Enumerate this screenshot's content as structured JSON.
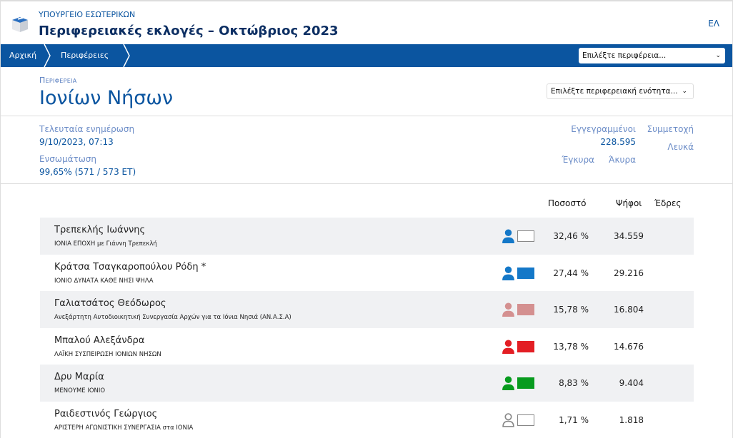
{
  "header": {
    "ministry": "ΥΠΟΥΡΓΕΙΟ ΕΣΩΤΕΡΙΚΩΝ",
    "title": "Περιφερειακές εκλογές – Οκτώβριος 2023",
    "language": "ΕΛ"
  },
  "nav": {
    "breadcrumbs": [
      "Αρχική",
      "Περιφέρειες"
    ],
    "region_select": "Επιλέξτε περιφέρεια..."
  },
  "region": {
    "label": "Περιφερεια",
    "name": "Ιονίων Νήσων",
    "unit_select": "Επιλέξτε περιφερειακή ενότητα..."
  },
  "stats": {
    "last_update_label": "Τελευταία ενημέρωση",
    "last_update": "9/10/2023, 07:13",
    "integration_label": "Ενσωμάτωση",
    "integration": "99,65% (571 / 573 ΕΤ)",
    "registered_label": "Εγγεγραμμένοι",
    "registered": "228.595",
    "turnout_label": "Συμμετοχή",
    "blank_label": "Λευκά",
    "valid_label": "Έγκυρα",
    "invalid_label": "Άκυρα"
  },
  "table": {
    "headers": {
      "percent": "Ποσοστό",
      "votes": "Ψήφοι",
      "seats": "Έδρες"
    },
    "rows": [
      {
        "name": "Τρεπεκλής Ιωάννης",
        "party": "ΙΟΝΙΑ ΕΠΟΧΗ με Γιάννη Τρεπεκλή",
        "percent": "32,46 %",
        "votes": "34.559",
        "icon_color": "#1478c8",
        "swatch_color": "#ffffff",
        "outline": false
      },
      {
        "name": "Κράτσα Τσαγκαροπούλου Ρόδη *",
        "party": "ΙΟΝΙΟ ΔΥΝΑΤΑ ΚΑΘΕ ΝΗΣΙ ΨΗΛΑ",
        "percent": "27,44 %",
        "votes": "29.216",
        "icon_color": "#1478c8",
        "swatch_color": "#1478c8",
        "outline": false
      },
      {
        "name": "Γαλιατσάτος Θεόδωρος",
        "party": "Ανεξάρτητη Αυτοδιοικητική Συνεργασία Αρχών για τα Ιόνια Νησιά (ΑΝ.Α.Σ.Α)",
        "percent": "15,78 %",
        "votes": "16.804",
        "icon_color": "#d49090",
        "swatch_color": "#d49090",
        "outline": false
      },
      {
        "name": "Μπαλού Αλεξάνδρα",
        "party": "ΛΑΪΚΗ ΣΥΣΠΕΙΡΩΣΗ ΙΟΝΙΩΝ ΝΗΣΩΝ",
        "percent": "13,78 %",
        "votes": "14.676",
        "icon_color": "#e31e24",
        "swatch_color": "#e31e24",
        "outline": false
      },
      {
        "name": "Δρυ Μαρία",
        "party": "ΜΕΝΟΥΜΕ ΙΟΝΙΟ",
        "percent": "8,83 %",
        "votes": "9.404",
        "icon_color": "#079b1e",
        "swatch_color": "#079b1e",
        "outline": false
      },
      {
        "name": "Ραιδεστινός Γεώργιος",
        "party": "ΑΡΙΣΤΕΡΗ ΑΓΩΝΙΣΤΙΚΗ ΣΥΝΕΡΓΑΣΙΑ στα ΙΟΝΙΑ",
        "percent": "1,71 %",
        "votes": "1.818",
        "icon_color": "#888888",
        "swatch_color": "#ffffff",
        "outline": true
      }
    ]
  },
  "colors": {
    "brand": "#0b55a0",
    "row_alt": "#f0f1f3"
  }
}
